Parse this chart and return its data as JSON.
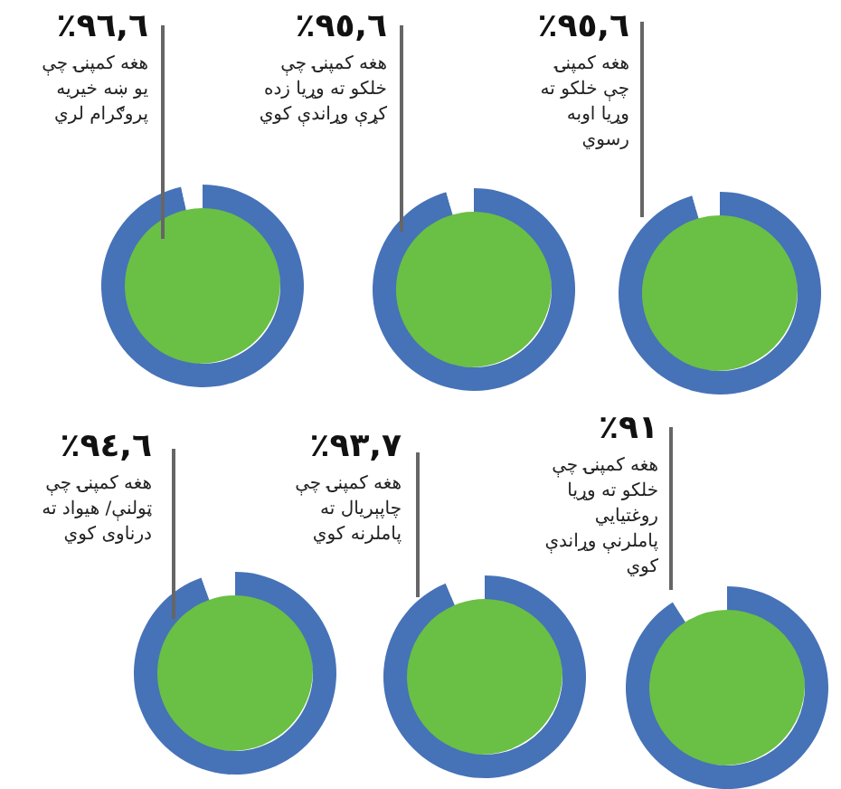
{
  "chart_data": [
    {
      "type": "donut",
      "title": "هغه کمپنۍ چې یو ښه خیریه پروګرام لري",
      "categories": [
        null,
        null
      ],
      "values": [
        96.6,
        3.4
      ],
      "colors": [
        "#4672b8",
        "#ffffff"
      ],
      "annotations": [
        "٩٦,٦٪"
      ]
    },
    {
      "type": "donut",
      "title": "هغه کمپنۍ چې خلکو ته وړیا زده کړې وړاندې کوي",
      "categories": [
        null,
        null
      ],
      "values": [
        95.6,
        4.4
      ],
      "colors": [
        "#4672b8",
        "#ffffff"
      ],
      "annotations": [
        "٩٥,٦٪"
      ]
    },
    {
      "type": "donut",
      "title": "هغه کمپنۍ چې خلکو ته وړیا اوبه رسوي",
      "categories": [
        null,
        null
      ],
      "values": [
        95.6,
        4.4
      ],
      "colors": [
        "#4672b8",
        "#ffffff"
      ],
      "annotations": [
        "٩٥,٦٪"
      ]
    },
    {
      "type": "donut",
      "title": "هغه کمپنۍ چې ټولنې/ هیواد ته درناوی کوي",
      "categories": [
        null,
        null
      ],
      "values": [
        94.6,
        5.4
      ],
      "colors": [
        "#4672b8",
        "#ffffff"
      ],
      "annotations": [
        "٩٤,٦٪"
      ]
    },
    {
      "type": "donut",
      "title": "هغه کمپنۍ چې چاپېریال ته پاملرنه کوي",
      "categories": [
        null,
        null
      ],
      "values": [
        93.7,
        6.3
      ],
      "colors": [
        "#4672b8",
        "#ffffff"
      ],
      "annotations": [
        "٩٣,٧٪"
      ]
    },
    {
      "type": "donut",
      "title": "هغه کمپنۍ چې خلکو ته وړیا روغتیایي پاملرنې وړاندې کوي",
      "categories": [
        null,
        null
      ],
      "values": [
        91,
        9
      ],
      "colors": [
        "#4672b8",
        "#ffffff"
      ],
      "annotations": [
        "٩١٪"
      ]
    }
  ]
}
